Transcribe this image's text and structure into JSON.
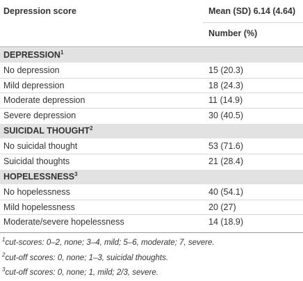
{
  "table": {
    "header": {
      "label": "Depression score",
      "value": "Mean (SD) 6.14 (4.64)",
      "subvalue": "Number (%)"
    },
    "sections": [
      {
        "title": "DEPRESSION",
        "note": "1",
        "rows": [
          [
            "No depression",
            "15 (20.3)"
          ],
          [
            "Mild depression",
            "18 (24.3)"
          ],
          [
            "Moderate depression",
            "11 (14.9)"
          ],
          [
            "Severe depression",
            "30 (40.5)"
          ]
        ]
      },
      {
        "title": "SUICIDAL THOUGHT",
        "note": "2",
        "rows": [
          [
            "No suicidal thought",
            "53 (71.6)"
          ],
          [
            "Suicidal thoughts",
            "21 (28.4)"
          ]
        ]
      },
      {
        "title": "HOPELESSNESS",
        "note": "3",
        "rows": [
          [
            "No hopelessness",
            "40 (54.1)"
          ],
          [
            "Mild hopelessness",
            "20 (27)"
          ],
          [
            "Moderate/severe hopelessness",
            "14 (18.9)"
          ]
        ]
      }
    ],
    "footnotes": [
      {
        "mark": "1",
        "text": "cut-scores: 0–2, none; 3–4, mild; 5–6, moderate; 7, severe."
      },
      {
        "mark": "2",
        "text": "cut-off scores: 0, none; 1–3, suicidal thoughts."
      },
      {
        "mark": "3",
        "text": "cut-off scores: 0, none; 1, mild; 2/3, severe."
      }
    ]
  }
}
